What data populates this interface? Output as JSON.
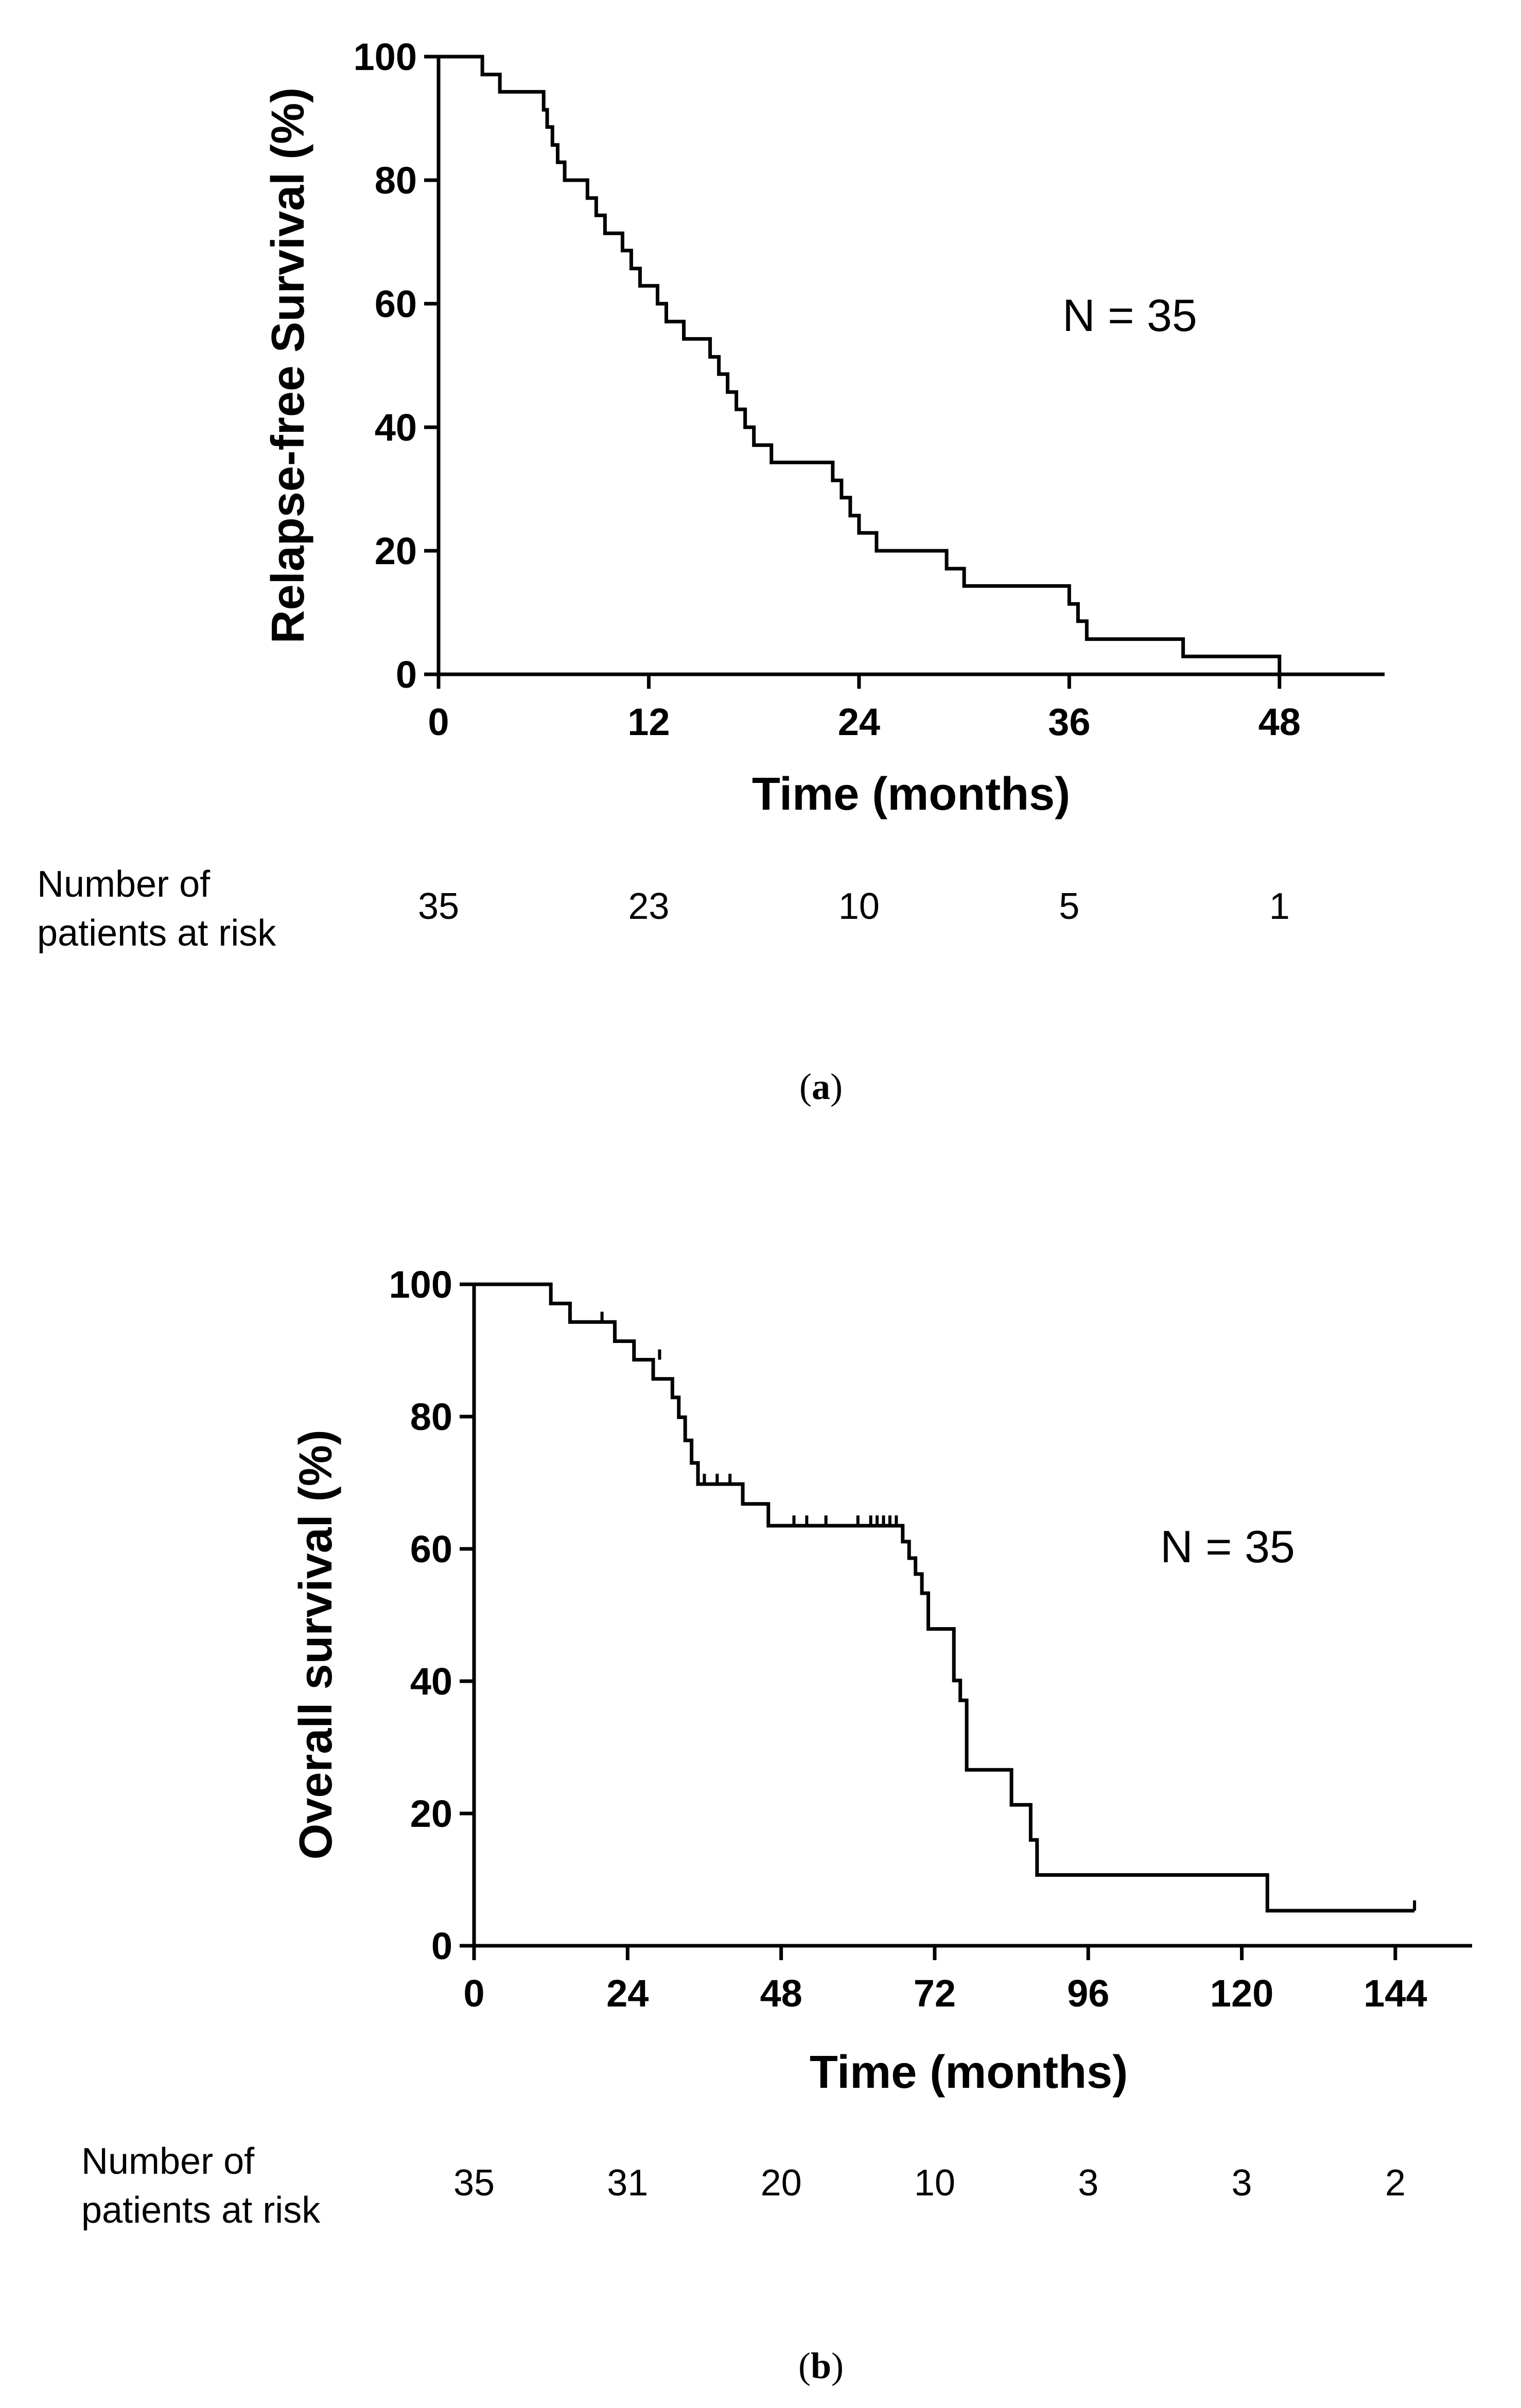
{
  "chart_data": [
    {
      "type": "line",
      "subtype": "kaplan-meier-step",
      "panel_label": "a",
      "xlabel": "Time (months)",
      "ylabel": "Relapse-free Survival (%)",
      "xlim": [
        0,
        54
      ],
      "ylim": [
        0,
        100
      ],
      "x_ticks": [
        0,
        12,
        24,
        36,
        48
      ],
      "y_ticks": [
        0,
        20,
        40,
        60,
        80,
        100
      ],
      "annotation": "N = 35",
      "series": [
        {
          "name": "Relapse-free survival",
          "x": [
            0,
            2.5,
            3.5,
            6,
            6.2,
            6.5,
            6.8,
            7.2,
            8.5,
            9,
            9.5,
            10.5,
            11,
            11.5,
            12.5,
            13,
            14,
            15.5,
            16,
            16.5,
            17,
            17.5,
            18,
            19,
            22.5,
            23,
            23.5,
            24,
            25,
            29,
            30,
            32,
            36,
            36.5,
            37,
            37.5,
            42.5,
            48
          ],
          "y": [
            100,
            97.1,
            94.3,
            91.4,
            88.6,
            85.7,
            82.9,
            80,
            77.1,
            74.3,
            71.4,
            68.6,
            65.7,
            62.9,
            60,
            57.1,
            54.3,
            51.4,
            48.6,
            45.7,
            42.9,
            40,
            37.1,
            34.3,
            31.4,
            28.6,
            25.7,
            22.9,
            20,
            17.1,
            14.3,
            14.3,
            11.4,
            8.6,
            5.7,
            5.7,
            2.9,
            0
          ]
        }
      ],
      "risk_table": {
        "label_line1": "Number of",
        "label_line2": "patients at risk",
        "times": [
          0,
          12,
          24,
          36,
          48
        ],
        "counts": [
          "35",
          "23",
          "10",
          "5",
          "1"
        ]
      },
      "caption": "a"
    },
    {
      "type": "line",
      "subtype": "kaplan-meier-step",
      "panel_label": "b",
      "xlabel": "Time (months)",
      "ylabel": "Overall survival (%)",
      "xlim": [
        0,
        156
      ],
      "ylim": [
        0,
        100
      ],
      "x_ticks": [
        0,
        24,
        48,
        72,
        96,
        120,
        144
      ],
      "y_ticks": [
        0,
        20,
        40,
        60,
        80,
        100
      ],
      "annotation": "N = 35",
      "series": [
        {
          "name": "Overall survival",
          "x": [
            0,
            12,
            15,
            22,
            25,
            28,
            31,
            32,
            33,
            34,
            35,
            42,
            46,
            55,
            67,
            68,
            69,
            70,
            71,
            75,
            76,
            77,
            78,
            84,
            87,
            88,
            124,
            147
          ],
          "y": [
            100,
            97.1,
            94.3,
            91.4,
            88.6,
            85.7,
            82.9,
            79.9,
            76.4,
            73,
            69.8,
            66.8,
            63.5,
            63.5,
            61.1,
            58.6,
            56.2,
            53.3,
            47.9,
            40.1,
            37.1,
            26.6,
            26.6,
            21.3,
            16,
            10.7,
            5.3,
            5.3
          ],
          "censored_x": [
            20,
            29,
            36,
            38,
            40,
            50,
            52,
            55,
            60,
            62,
            63,
            64,
            65,
            66,
            147
          ],
          "censored_y": [
            94.3,
            88.6,
            69.8,
            69.8,
            69.8,
            63.5,
            63.5,
            63.5,
            63.5,
            63.5,
            63.5,
            63.5,
            63.5,
            63.5,
            5.3
          ]
        }
      ],
      "risk_table": {
        "label_line1": "Number of",
        "label_line2": "patients at risk",
        "times": [
          0,
          24,
          48,
          72,
          96,
          120,
          144
        ],
        "counts": [
          "35",
          "31",
          "20",
          "10",
          "3",
          "3",
          "2"
        ]
      },
      "caption": "b"
    }
  ]
}
